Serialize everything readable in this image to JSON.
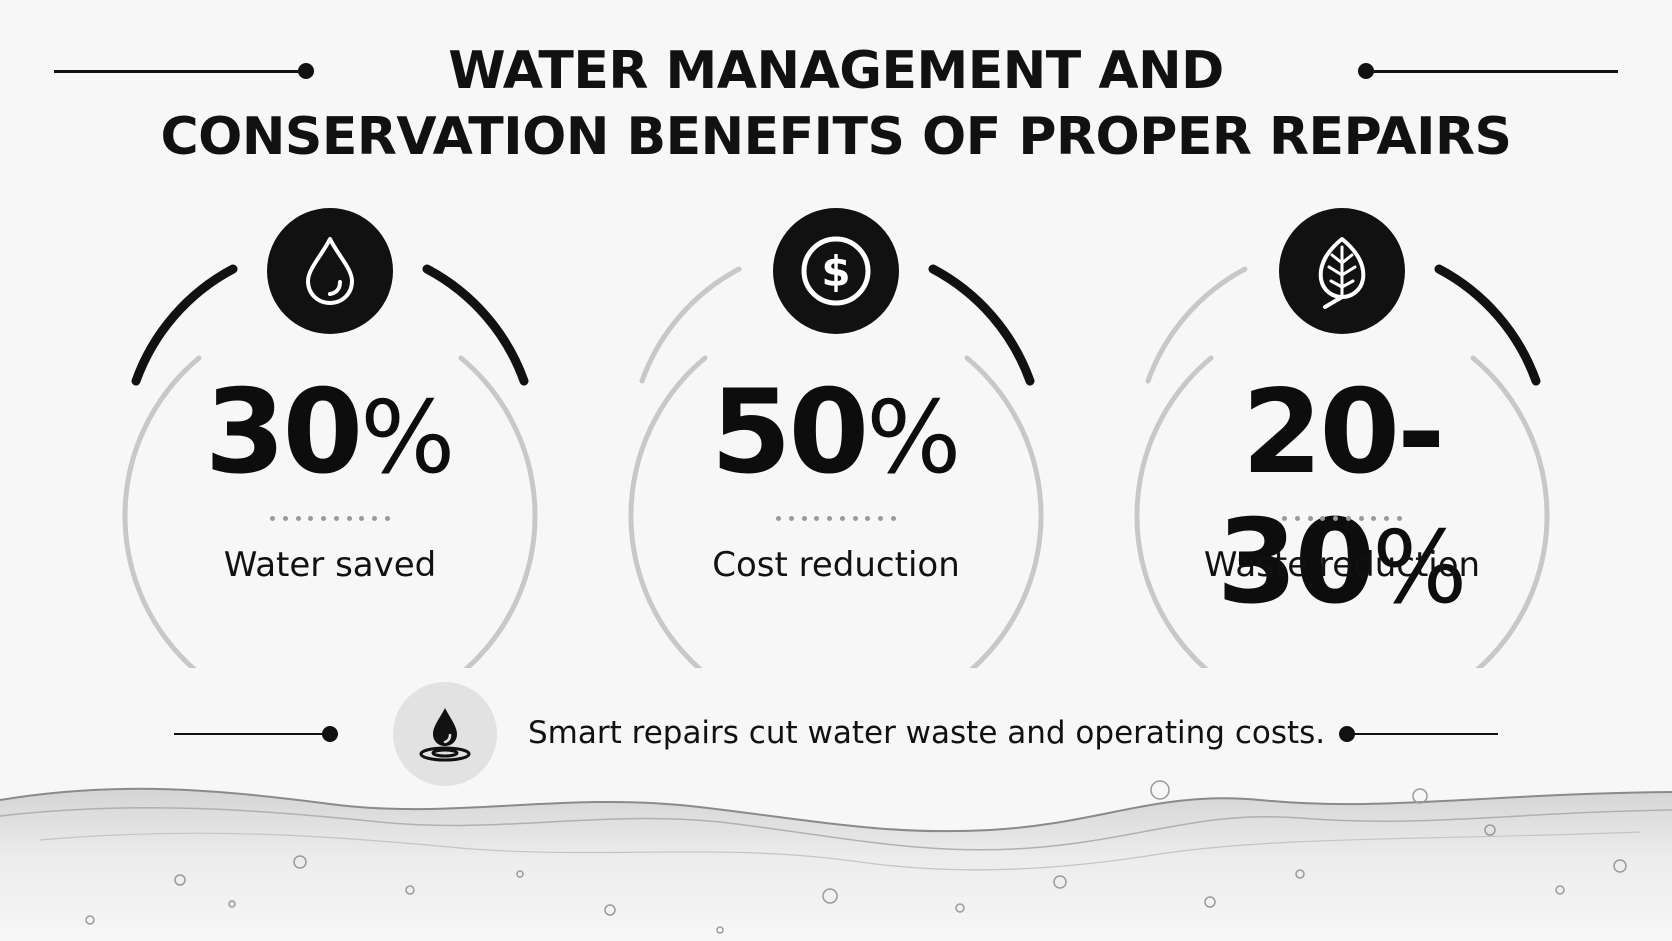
{
  "header": {
    "title_line1": "WATER MANAGEMENT AND",
    "title_line2": "CONSERVATION BENEFITS OF PROPER REPAIRS"
  },
  "stats": [
    {
      "icon": "water-drop-icon",
      "number": "30",
      "unit": "%",
      "label": "Water saved"
    },
    {
      "icon": "dollar-coin-icon",
      "number": "50",
      "unit": "%",
      "label": "Cost reduction"
    },
    {
      "icon": "leaf-icon",
      "number": "20-30",
      "unit": "%",
      "label": "Waste reduction"
    }
  ],
  "footer": {
    "icon": "water-drop-ripple-icon",
    "note": "Smart repairs cut water waste and operating costs."
  },
  "colors": {
    "background": "#f7f7f7",
    "primary": "#111111",
    "ring_track": "#c8c8c8",
    "dots": "#9a9a9a",
    "footer_icon_bg": "#e2e2e2"
  }
}
